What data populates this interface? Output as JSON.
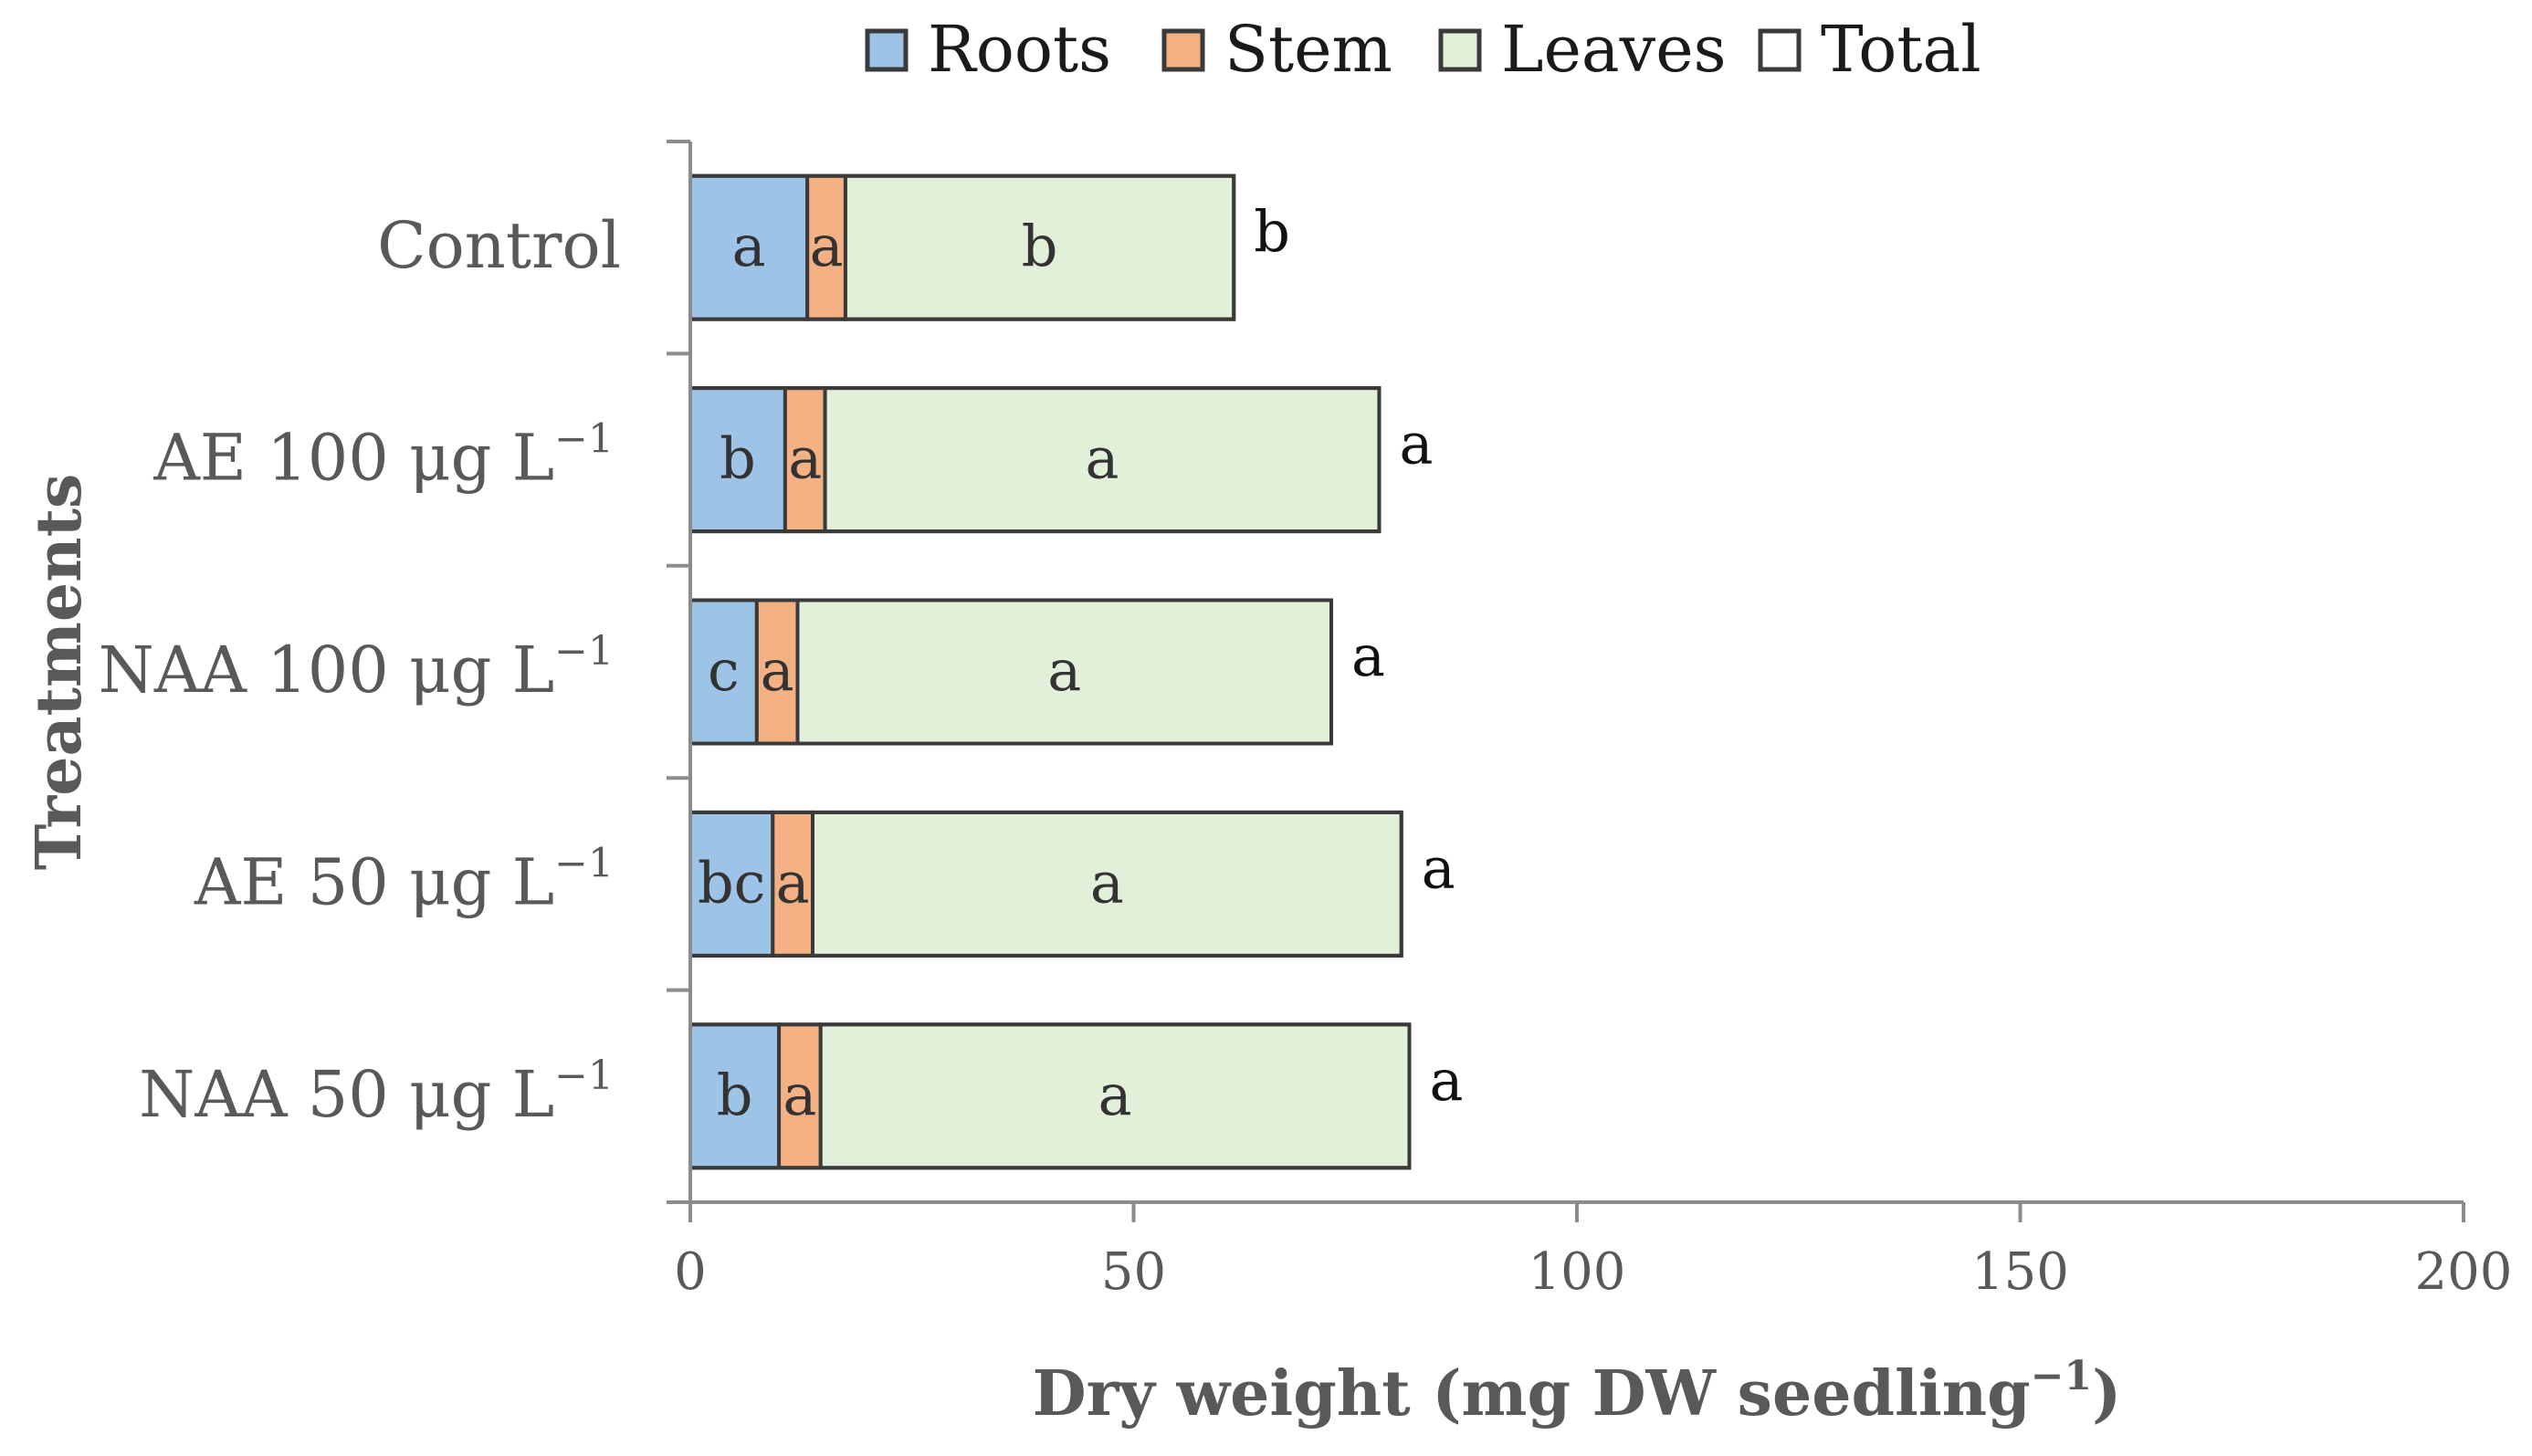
{
  "chart_data": {
    "type": "bar",
    "orientation": "horizontal",
    "stacked": true,
    "categories": [
      {
        "label": "Control",
        "unit": "",
        "unit_sup": ""
      },
      {
        "label": "AE 100 μg L",
        "unit": "",
        "unit_sup": "−1"
      },
      {
        "label": "NAA 100 μg L",
        "unit": "",
        "unit_sup": "−1"
      },
      {
        "label": "AE 50 μg L",
        "unit": "",
        "unit_sup": "−1"
      },
      {
        "label": "NAA 50 μg L",
        "unit": "",
        "unit_sup": "−1"
      }
    ],
    "series": [
      {
        "name": "Roots",
        "color": "#9DC3E6",
        "values": [
          13.2,
          10.7,
          7.5,
          9.3,
          10.0
        ],
        "letters": [
          "a",
          "b",
          "c",
          "bc",
          "b"
        ]
      },
      {
        "name": "Stem",
        "color": "#F4B183",
        "values": [
          4.3,
          4.5,
          4.6,
          4.5,
          4.7
        ],
        "letters": [
          "a",
          "a",
          "a",
          "a",
          "a"
        ]
      },
      {
        "name": "Leaves",
        "color": "#E2F0D9",
        "values": [
          43.8,
          62.5,
          60.2,
          66.4,
          66.4
        ],
        "letters": [
          "b",
          "a",
          "a",
          "a",
          "a"
        ]
      }
    ],
    "total": {
      "name": "Total",
      "color": "#FFFFFF",
      "values": [
        61.3,
        77.7,
        72.3,
        80.2,
        81.1
      ],
      "letters": [
        "b",
        "a",
        "a",
        "a",
        "a"
      ]
    },
    "xlim": [
      0,
      200
    ],
    "xticks": [
      "0",
      "50",
      "100",
      "150",
      "200"
    ],
    "xtick_values": [
      0,
      50,
      100,
      150,
      200
    ],
    "xlabel": "Dry weight (mg DW seedling",
    "xlabel_sup": "−1",
    "xlabel_close": ")",
    "ylabel": "Treatments",
    "legend_position": "top-center"
  }
}
